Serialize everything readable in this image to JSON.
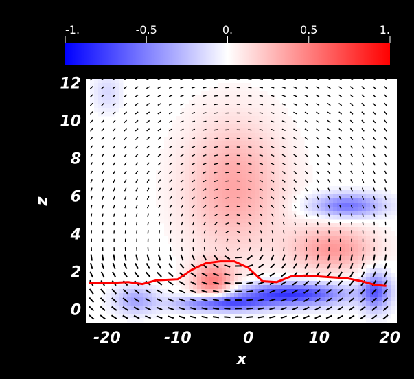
{
  "chart_data": {
    "type": "heatmap",
    "title": "",
    "xlabel": "x",
    "ylabel": "z",
    "xlim": [
      -23,
      21
    ],
    "ylim": [
      -0.7,
      12.2
    ],
    "x_ticks": [
      "-20",
      "-10",
      "0",
      "10",
      "20"
    ],
    "x_tick_values": [
      -20,
      -10,
      0,
      10,
      20
    ],
    "y_ticks": [
      "0",
      "2",
      "4",
      "6",
      "8",
      "10",
      "12"
    ],
    "y_tick_values": [
      0,
      2,
      4,
      6,
      8,
      10,
      12
    ],
    "colorbar": {
      "range": [
        -1,
        1
      ],
      "ticks": [
        "-1.",
        "-0.5",
        "0.",
        "0.5",
        "1."
      ],
      "tick_values": [
        -1,
        -0.5,
        0,
        0.5,
        1
      ],
      "colors": {
        "min": "#0000ff",
        "mid": "#ffffff",
        "max": "#ff0000"
      }
    },
    "colormap_features": [
      {
        "x": -2,
        "z": 6.5,
        "sx": 7,
        "sz": 3.5,
        "v": 0.35
      },
      {
        "x": 12,
        "z": 3.2,
        "sx": 6,
        "sz": 1.2,
        "v": 0.4
      },
      {
        "x": -5,
        "z": 1.4,
        "sx": 3,
        "sz": 1.0,
        "v": 0.5
      },
      {
        "x": 14,
        "z": 5.5,
        "sx": 5,
        "sz": 0.6,
        "v": -0.55
      },
      {
        "x": 6,
        "z": 0.8,
        "sx": 8,
        "sz": 0.6,
        "v": -0.8
      },
      {
        "x": -4,
        "z": 0.3,
        "sx": 6,
        "sz": 0.4,
        "v": -0.7
      },
      {
        "x": -16,
        "z": 0.5,
        "sx": 3,
        "sz": 0.7,
        "v": -0.35
      },
      {
        "x": 18,
        "z": 1.0,
        "sx": 2,
        "sz": 1.0,
        "v": -0.6
      },
      {
        "x": -20,
        "z": 11.5,
        "sx": 2,
        "sz": 1.0,
        "v": -0.15
      }
    ],
    "boundary_line": {
      "color": "#ff0000",
      "x": [
        -22.6,
        -20,
        -17,
        -15,
        -13,
        -10,
        -8,
        -6,
        -4,
        -2,
        0,
        2,
        4,
        6,
        8,
        10,
        12,
        14,
        16,
        18,
        19.5
      ],
      "z": [
        1.4,
        1.4,
        1.45,
        1.35,
        1.55,
        1.6,
        2.1,
        2.45,
        2.55,
        2.55,
        2.2,
        1.5,
        1.45,
        1.75,
        1.8,
        1.75,
        1.7,
        1.65,
        1.5,
        1.3,
        1.25
      ]
    },
    "vector_field": {
      "color": "#000000",
      "x_step": 1.6,
      "z_step": 0.45
    }
  }
}
